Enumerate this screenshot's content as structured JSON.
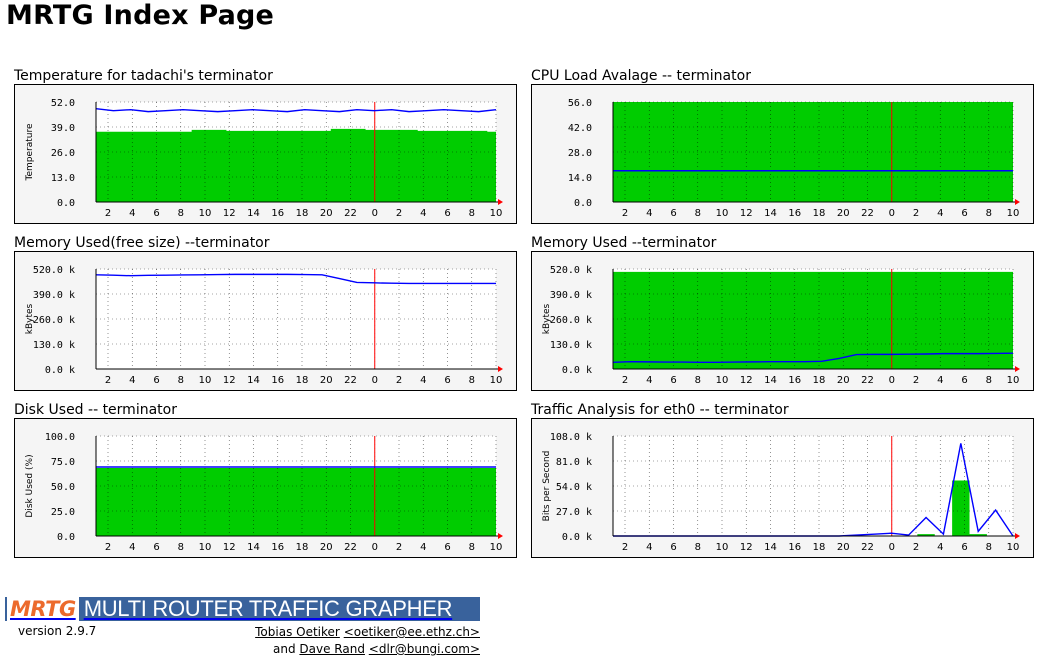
{
  "page": {
    "title": "MRTG Index Page"
  },
  "panels": [
    {
      "title": "Temperature for tadachi's terminator",
      "ylabel": "Temperature",
      "yticks": [
        "52.0",
        "39.0",
        "26.0",
        "13.0",
        "0.0"
      ],
      "colors": {
        "area": "#00cc00",
        "line": "#0000ff"
      }
    },
    {
      "title": "CPU Load Avalage -- terminator",
      "ylabel": "",
      "yticks": [
        "56.0",
        "42.0",
        "28.0",
        "14.0",
        "0.0"
      ],
      "colors": {
        "area": "#00cc00",
        "line": "#0000ff"
      }
    },
    {
      "title": "Memory Used(free size) --terminator",
      "ylabel": "kBytes",
      "yticks": [
        "520.0 k",
        "390.0 k",
        "260.0 k",
        "130.0 k",
        "0.0 k"
      ],
      "colors": {
        "area": "#00cc00",
        "line": "#0000ff"
      }
    },
    {
      "title": "Memory Used --terminator",
      "ylabel": "kBytes",
      "yticks": [
        "520.0 k",
        "390.0 k",
        "260.0 k",
        "130.0 k",
        "0.0 k"
      ],
      "colors": {
        "area": "#00cc00",
        "line": "#0000ff"
      }
    },
    {
      "title": "Disk Used -- terminator",
      "ylabel": "Disk Used (%)",
      "yticks": [
        "100.0",
        "75.0",
        "50.0",
        "25.0",
        "0.0"
      ],
      "colors": {
        "area": "#00cc00",
        "line": "#0000ff"
      }
    },
    {
      "title": "Traffic Analysis for eth0 -- terminator",
      "ylabel": "Bits per Second",
      "yticks": [
        "108.0 k",
        "81.0 k",
        "54.0 k",
        "27.0 k",
        "0.0 k"
      ],
      "colors": {
        "area": "#00cc00",
        "line": "#0000ff"
      }
    }
  ],
  "xticks": [
    "2",
    "4",
    "6",
    "8",
    "10",
    "12",
    "14",
    "16",
    "18",
    "20",
    "22",
    "0",
    "2",
    "4",
    "6",
    "8",
    "10"
  ],
  "chart_data": [
    {
      "type": "area",
      "title": "Temperature for tadachi's terminator",
      "ylabel": "Temperature",
      "ylim": [
        0,
        52
      ],
      "series": [
        {
          "values": [
            36.5,
            36.5,
            36.5,
            36.5,
            36.5,
            36.5,
            37.5,
            37.5,
            37.0,
            37.0,
            37.0,
            37.0,
            37.0,
            37.0,
            38.0,
            38.0,
            37.5,
            37.5,
            37.5,
            37.0,
            37.0,
            37.0,
            37.0,
            36.5
          ]
        },
        {
          "values": [
            48.5,
            47.5,
            48.0,
            47.0,
            47.5,
            48.0,
            47.5,
            47.0,
            47.5,
            48.0,
            47.5,
            47.0,
            48.0,
            47.5,
            47.0,
            48.0,
            47.5,
            48.0,
            47.0,
            47.5,
            48.0,
            47.5,
            47.0,
            48.0
          ]
        }
      ]
    },
    {
      "type": "area",
      "title": "CPU Load Avalage -- terminator",
      "ylim": [
        0,
        56
      ],
      "series": [
        {
          "values": [
            56,
            56,
            56,
            56,
            56,
            56,
            56,
            56,
            56,
            56,
            56,
            56,
            56,
            56,
            56,
            56,
            56,
            56,
            56,
            56,
            56,
            56,
            56,
            56
          ]
        },
        {
          "values": [
            17.5,
            17.5,
            17.5,
            17.5,
            17.5,
            17.5,
            17.5,
            17.5,
            17.5,
            17.5,
            17.5,
            17.5,
            17.5,
            17.5,
            17.5,
            17.5,
            17.5,
            17.5,
            17.5,
            17.5,
            17.5,
            17.5,
            17.5,
            17.5
          ]
        }
      ]
    },
    {
      "type": "line",
      "title": "Memory Used(free size) --terminator",
      "ylabel": "kBytes",
      "ylim": [
        0,
        520
      ],
      "series": [
        {
          "values": [
            0,
            0,
            0,
            0,
            0,
            0,
            0,
            0,
            0,
            0,
            0,
            0,
            0,
            0,
            0,
            0,
            0,
            0,
            0,
            0,
            0,
            0,
            0,
            0
          ]
        },
        {
          "values": [
            490,
            488,
            485,
            487,
            488,
            489,
            490,
            491,
            492,
            492,
            492,
            492,
            491,
            490,
            470,
            450,
            448,
            446,
            445,
            445,
            445,
            445,
            445,
            445
          ]
        }
      ]
    },
    {
      "type": "area",
      "title": "Memory Used --terminator",
      "ylabel": "kBytes",
      "ylim": [
        0,
        520
      ],
      "series": [
        {
          "values": [
            505,
            505,
            505,
            505,
            505,
            505,
            505,
            505,
            505,
            505,
            505,
            505,
            505,
            505,
            505,
            505,
            505,
            505,
            505,
            505,
            505,
            505,
            505,
            505
          ]
        },
        {
          "values": [
            35,
            38,
            37,
            36,
            36,
            35,
            35,
            36,
            37,
            38,
            38,
            38,
            40,
            55,
            75,
            76,
            76,
            77,
            78,
            80,
            80,
            80,
            81,
            82
          ]
        }
      ]
    },
    {
      "type": "area",
      "title": "Disk Used -- terminator",
      "ylabel": "Disk Used (%)",
      "ylim": [
        0,
        100
      ],
      "series": [
        {
          "values": [
            68,
            68,
            68,
            68,
            68,
            68,
            68,
            68,
            68,
            68,
            68,
            68,
            68,
            68,
            68,
            68,
            68,
            68,
            68,
            68,
            68,
            68,
            68,
            68
          ]
        },
        {
          "values": [
            69,
            69,
            69,
            69,
            69,
            69,
            69,
            69,
            69,
            69,
            69,
            69,
            69,
            69,
            69,
            69,
            69,
            69,
            69,
            69,
            69,
            69,
            69,
            69
          ]
        }
      ]
    },
    {
      "type": "line",
      "title": "Traffic Analysis for eth0 -- terminator",
      "ylabel": "Bits per Second",
      "ylim": [
        0,
        108
      ],
      "series": [
        {
          "values": [
            0,
            0,
            0,
            0,
            0,
            0,
            0,
            0,
            0,
            0,
            0,
            0,
            0,
            0,
            0,
            0,
            0,
            0,
            2,
            0,
            60,
            2,
            0,
            0
          ]
        },
        {
          "values": [
            0,
            0,
            0,
            0,
            0,
            0,
            0,
            0,
            0,
            0,
            0,
            0,
            0,
            0,
            1,
            2,
            3,
            1,
            20,
            2,
            100,
            5,
            28,
            0
          ]
        }
      ]
    }
  ],
  "footer": {
    "logo_mrtg": "MRTG",
    "logo_text": "MULTI ROUTER TRAFFIC GRAPHER",
    "version": "version 2.9.7",
    "author1_name": "Tobias Oetiker",
    "author1_email": "<oetiker@ee.ethz.ch>",
    "and_text": "and",
    "author2_name": "Dave Rand",
    "author2_email": "<dlr@bungi.com>"
  }
}
